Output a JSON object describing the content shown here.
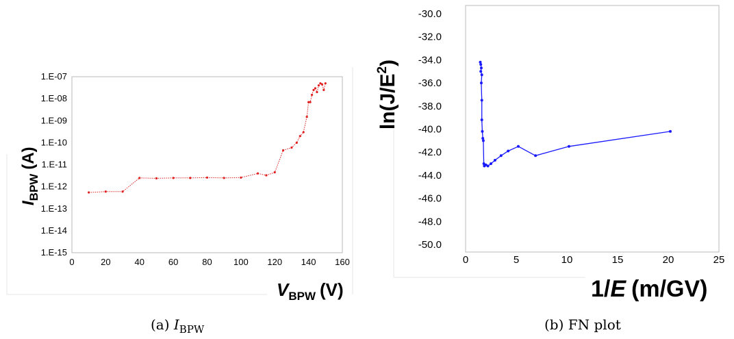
{
  "chart_data": [
    {
      "type": "line",
      "panel": "a",
      "caption_prefix": "(a)",
      "caption_var": "I",
      "caption_sub": "BPW",
      "ylabel": {
        "var": "I",
        "sub": "BPW",
        "unit": "(A)"
      },
      "xlabel": {
        "var": "V",
        "sub": "BPW",
        "unit": "(V)"
      },
      "y_scale": "log",
      "ylim_exp": [
        -15,
        -7
      ],
      "ytick_labels": [
        "1.E-15",
        "1.E-14",
        "1.E-13",
        "1.E-12",
        "1.E-11",
        "1.E-10",
        "1.E-09",
        "1.E-08",
        "1.E-07"
      ],
      "xlim": [
        0,
        160
      ],
      "xtick_labels": [
        "0",
        "20",
        "40",
        "60",
        "80",
        "100",
        "120",
        "140",
        "160"
      ],
      "xticks": [
        0,
        20,
        40,
        60,
        80,
        100,
        120,
        140,
        160
      ],
      "grid": false,
      "line_style": "dotted",
      "color": "#e02020",
      "series": [
        {
          "x": [
            10,
            20,
            30,
            40,
            50,
            60,
            70,
            80,
            90,
            100,
            110,
            115,
            120,
            125,
            130,
            133,
            135,
            137,
            139,
            140,
            141,
            142,
            143,
            144,
            145,
            146,
            147,
            148,
            149,
            150
          ],
          "y": [
            5.5e-13,
            6e-13,
            6e-13,
            2.5e-12,
            2.4e-12,
            2.5e-12,
            2.5e-12,
            2.6e-12,
            2.5e-12,
            2.6e-12,
            4e-12,
            3.3e-12,
            4.5e-12,
            4.5e-11,
            6e-11,
            1e-10,
            2e-10,
            3e-10,
            1.5e-09,
            7e-09,
            7e-09,
            1.5e-08,
            2.5e-08,
            3e-08,
            2e-08,
            4e-08,
            5e-08,
            4.5e-08,
            2.5e-08,
            5e-08
          ]
        }
      ]
    },
    {
      "type": "line",
      "panel": "b",
      "caption": "(b) FN plot",
      "ylabel": {
        "text": "ln(J/E",
        "sup": "2",
        "close": ")"
      },
      "xlabel": {
        "prefix": "1/",
        "var": "E",
        "unit": "(m/GV)"
      },
      "ylim": [
        -50,
        -30
      ],
      "yticks": [
        -50,
        -48,
        -46,
        -44,
        -42,
        -40,
        -38,
        -36,
        -34,
        -32,
        -30
      ],
      "ytick_labels": [
        "-50.0",
        "-48.0",
        "-46.0",
        "-44.0",
        "-42.0",
        "-40.0",
        "-38.0",
        "-36.0",
        "-34.0",
        "-32.0",
        "-30.0"
      ],
      "xlim": [
        0,
        25
      ],
      "xticks": [
        0,
        5,
        10,
        15,
        20,
        25
      ],
      "xtick_labels": [
        "0",
        "5",
        "10",
        "15",
        "20",
        "25"
      ],
      "grid": false,
      "line_style": "solid",
      "color": "#1a1aff",
      "series": [
        {
          "x": [
            1.45,
            1.5,
            1.55,
            1.5,
            1.6,
            1.55,
            1.6,
            1.6,
            1.65,
            1.7,
            1.75,
            1.8,
            1.85,
            2.0,
            2.2,
            2.5,
            2.9,
            3.5,
            4.2,
            5.2,
            6.9,
            10.2,
            20.2
          ],
          "y": [
            -34.2,
            -34.4,
            -34.7,
            -35.0,
            -35.3,
            -36.0,
            -37.5,
            -39.2,
            -40.2,
            -40.8,
            -41.0,
            -43.0,
            -43.2,
            -43.1,
            -43.2,
            -43.0,
            -42.7,
            -42.3,
            -41.9,
            -41.5,
            -42.3,
            -41.5,
            -40.2
          ]
        }
      ]
    }
  ]
}
